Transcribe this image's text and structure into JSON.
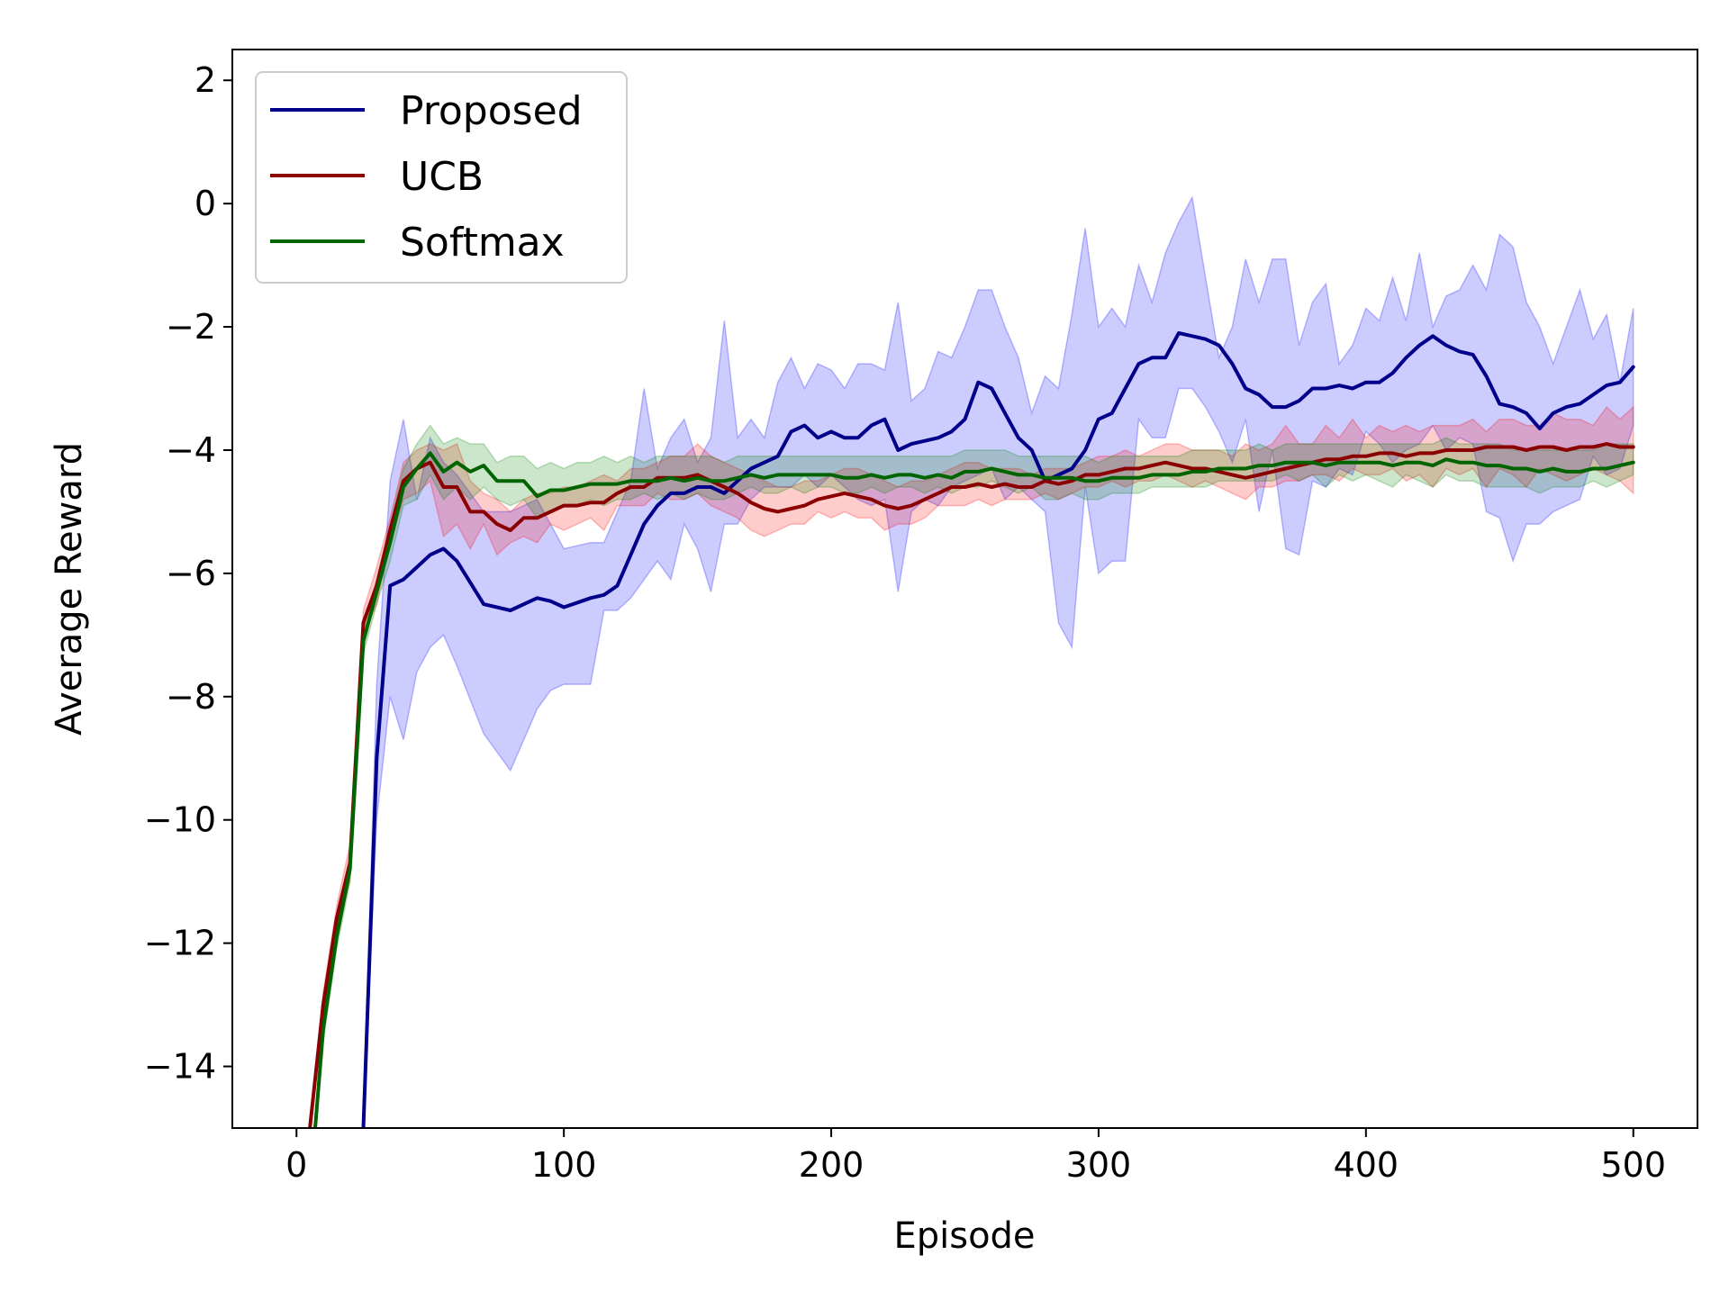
{
  "chart_data": {
    "type": "line",
    "title": "",
    "xlabel": "Episode",
    "ylabel": "Average Reward",
    "xlim": [
      -24,
      524
    ],
    "ylim": [
      -15,
      2.5
    ],
    "xticks": [
      0,
      100,
      200,
      300,
      400,
      500
    ],
    "xtick_labels": [
      "0",
      "100",
      "200",
      "300",
      "400",
      "500"
    ],
    "yticks": [
      2,
      0,
      -2,
      -4,
      -6,
      -8,
      -10,
      -12,
      -14
    ],
    "ytick_labels": [
      "2",
      "0",
      "−2",
      "−4",
      "−6",
      "−8",
      "−10",
      "−12",
      "−14"
    ],
    "grid": false,
    "legend": {
      "placement": "top-left",
      "entries": [
        "Proposed",
        "UCB",
        "Softmax"
      ]
    },
    "series": [
      {
        "name": "Proposed",
        "color": "#00008b",
        "band_color": "#0000ff",
        "x": [
          25,
          30,
          35,
          40,
          45,
          50,
          55,
          60,
          70,
          80,
          90,
          95,
          100,
          110,
          115,
          120,
          125,
          130,
          135,
          140,
          145,
          150,
          155,
          160,
          165,
          170,
          175,
          180,
          185,
          190,
          195,
          200,
          205,
          210,
          215,
          220,
          225,
          230,
          235,
          240,
          245,
          250,
          255,
          260,
          265,
          270,
          275,
          280,
          285,
          290,
          295,
          300,
          305,
          310,
          315,
          320,
          325,
          330,
          335,
          340,
          345,
          350,
          355,
          360,
          365,
          370,
          375,
          380,
          385,
          390,
          395,
          400,
          405,
          410,
          415,
          420,
          425,
          430,
          435,
          440,
          445,
          450,
          455,
          460,
          465,
          470,
          475,
          480,
          485,
          490,
          495,
          500
        ],
        "y": [
          -15,
          -9,
          -6.2,
          -6.1,
          -5.9,
          -5.7,
          -5.6,
          -5.8,
          -6.5,
          -6.6,
          -6.4,
          -6.45,
          -6.55,
          -6.4,
          -6.35,
          -6.2,
          -5.7,
          -5.2,
          -4.9,
          -4.7,
          -4.7,
          -4.6,
          -4.6,
          -4.7,
          -4.5,
          -4.3,
          -4.2,
          -4.1,
          -3.7,
          -3.6,
          -3.8,
          -3.7,
          -3.8,
          -3.8,
          -3.6,
          -3.5,
          -4.0,
          -3.9,
          -3.85,
          -3.8,
          -3.7,
          -3.5,
          -2.9,
          -3.0,
          -3.4,
          -3.8,
          -4.0,
          -4.5,
          -4.4,
          -4.3,
          -4.0,
          -3.5,
          -3.4,
          -3.0,
          -2.6,
          -2.5,
          -2.5,
          -2.1,
          -2.15,
          -2.2,
          -2.3,
          -2.6,
          -3.0,
          -3.1,
          -3.3,
          -3.3,
          -3.2,
          -3.0,
          -3.0,
          -2.95,
          -3.0,
          -2.9,
          -2.9,
          -2.75,
          -2.5,
          -2.3,
          -2.15,
          -2.3,
          -2.4,
          -2.45,
          -2.8,
          -3.25,
          -3.3,
          -3.4,
          -3.65,
          -3.4,
          -3.3,
          -3.25,
          -3.1,
          -2.95,
          -2.9,
          -2.65
        ],
        "lower": [
          -15,
          -10,
          -8.0,
          -8.7,
          -7.6,
          -7.2,
          -7.0,
          -7.5,
          -8.6,
          -9.2,
          -8.2,
          -7.9,
          -7.8,
          -7.8,
          -6.6,
          -6.6,
          -6.4,
          -6.1,
          -5.8,
          -6.1,
          -5.2,
          -5.6,
          -6.3,
          -5.2,
          -5.2,
          -4.8,
          -4.6,
          -4.6,
          -4.6,
          -4.4,
          -4.6,
          -4.4,
          -4.6,
          -4.8,
          -4.9,
          -4.8,
          -6.3,
          -5.0,
          -4.8,
          -4.9,
          -4.6,
          -4.5,
          -4.4,
          -4.3,
          -4.8,
          -4.6,
          -4.8,
          -5.0,
          -6.8,
          -7.2,
          -4.6,
          -6.0,
          -5.8,
          -5.8,
          -3.5,
          -3.8,
          -3.8,
          -3.0,
          -3.0,
          -3.3,
          -3.7,
          -4.2,
          -3.5,
          -5.0,
          -4.0,
          -5.6,
          -5.7,
          -4.5,
          -4.6,
          -4.3,
          -4.4,
          -3.7,
          -3.9,
          -4.2,
          -4.0,
          -3.9,
          -3.6,
          -4.0,
          -3.8,
          -3.9,
          -5.0,
          -5.1,
          -5.8,
          -5.2,
          -5.2,
          -5.0,
          -4.9,
          -4.8,
          -4.1,
          -4.4,
          -4.3,
          -3.6
        ],
        "upper": [
          -15,
          -7.8,
          -4.5,
          -3.5,
          -4.8,
          -3.8,
          -4.2,
          -4.4,
          -5.0,
          -5.0,
          -4.8,
          -5.2,
          -5.6,
          -5.5,
          -5.5,
          -5.0,
          -4.5,
          -3.0,
          -4.3,
          -3.8,
          -3.5,
          -4.2,
          -3.8,
          -1.9,
          -3.8,
          -3.5,
          -3.8,
          -2.9,
          -2.5,
          -3.0,
          -2.6,
          -2.7,
          -3.0,
          -2.6,
          -2.6,
          -2.7,
          -1.6,
          -3.2,
          -3.0,
          -2.4,
          -2.5,
          -2.0,
          -1.4,
          -1.4,
          -2.0,
          -2.5,
          -3.4,
          -2.8,
          -3.0,
          -1.8,
          -0.4,
          -2.0,
          -1.7,
          -2.0,
          -1.0,
          -1.6,
          -0.8,
          -0.3,
          0.1,
          -1.2,
          -2.5,
          -2.0,
          -0.9,
          -1.6,
          -0.9,
          -0.9,
          -2.3,
          -1.6,
          -1.3,
          -2.6,
          -2.3,
          -1.7,
          -1.9,
          -1.2,
          -1.9,
          -0.8,
          -2.0,
          -1.5,
          -1.4,
          -1.0,
          -1.4,
          -0.5,
          -0.7,
          -1.6,
          -2.0,
          -2.6,
          -2.0,
          -1.4,
          -2.2,
          -1.8,
          -2.9,
          -1.7
        ]
      },
      {
        "name": "UCB",
        "color": "#8b0000",
        "band_color": "#ff0000",
        "x": [
          5,
          10,
          15,
          20,
          25,
          30,
          35,
          40,
          45,
          50,
          55,
          60,
          65,
          70,
          75,
          80,
          85,
          90,
          95,
          100,
          105,
          110,
          115,
          120,
          125,
          130,
          135,
          140,
          145,
          150,
          155,
          160,
          165,
          170,
          175,
          180,
          185,
          190,
          195,
          200,
          205,
          210,
          215,
          220,
          225,
          230,
          235,
          240,
          245,
          250,
          255,
          260,
          265,
          270,
          275,
          280,
          285,
          290,
          295,
          300,
          305,
          310,
          315,
          320,
          325,
          330,
          335,
          340,
          345,
          350,
          355,
          360,
          365,
          370,
          375,
          380,
          385,
          390,
          395,
          400,
          405,
          410,
          415,
          420,
          425,
          430,
          435,
          440,
          445,
          450,
          455,
          460,
          465,
          470,
          475,
          480,
          485,
          490,
          495,
          500
        ],
        "y": [
          -15,
          -13.0,
          -11.6,
          -10.7,
          -6.8,
          -6.2,
          -5.3,
          -4.5,
          -4.3,
          -4.2,
          -4.6,
          -4.6,
          -5.0,
          -5.0,
          -5.2,
          -5.3,
          -5.1,
          -5.1,
          -5.0,
          -4.9,
          -4.9,
          -4.85,
          -4.85,
          -4.7,
          -4.6,
          -4.6,
          -4.45,
          -4.45,
          -4.45,
          -4.4,
          -4.5,
          -4.6,
          -4.7,
          -4.85,
          -4.95,
          -5.0,
          -4.95,
          -4.9,
          -4.8,
          -4.75,
          -4.7,
          -4.75,
          -4.8,
          -4.9,
          -4.95,
          -4.9,
          -4.8,
          -4.7,
          -4.6,
          -4.6,
          -4.55,
          -4.6,
          -4.55,
          -4.6,
          -4.6,
          -4.5,
          -4.55,
          -4.5,
          -4.4,
          -4.4,
          -4.35,
          -4.3,
          -4.3,
          -4.25,
          -4.2,
          -4.25,
          -4.3,
          -4.3,
          -4.35,
          -4.4,
          -4.45,
          -4.4,
          -4.35,
          -4.3,
          -4.25,
          -4.2,
          -4.15,
          -4.15,
          -4.1,
          -4.1,
          -4.05,
          -4.05,
          -4.1,
          -4.05,
          -4.05,
          -4.0,
          -4.0,
          -4.0,
          -3.95,
          -3.95,
          -3.95,
          -4.0,
          -3.95,
          -3.95,
          -4.0,
          -3.95,
          -3.95,
          -3.9,
          -3.95,
          -3.95
        ],
        "lower": [
          -15,
          -13.2,
          -11.8,
          -11.0,
          -7.0,
          -6.5,
          -5.5,
          -4.8,
          -4.7,
          -4.5,
          -5.4,
          -5.2,
          -5.6,
          -5.2,
          -5.7,
          -5.5,
          -5.4,
          -5.5,
          -5.2,
          -5.3,
          -5.2,
          -5.1,
          -5.3,
          -4.9,
          -4.9,
          -4.9,
          -4.7,
          -4.8,
          -4.8,
          -4.7,
          -4.9,
          -5.0,
          -5.1,
          -5.3,
          -5.4,
          -5.3,
          -5.2,
          -5.2,
          -5.0,
          -5.1,
          -5.0,
          -5.1,
          -5.1,
          -5.3,
          -5.2,
          -5.2,
          -5.1,
          -4.9,
          -4.9,
          -4.9,
          -4.8,
          -4.9,
          -4.8,
          -4.8,
          -4.8,
          -4.7,
          -4.8,
          -4.7,
          -4.6,
          -4.6,
          -4.5,
          -4.6,
          -4.5,
          -4.5,
          -4.4,
          -4.5,
          -4.6,
          -4.5,
          -4.6,
          -4.7,
          -4.8,
          -4.6,
          -4.6,
          -4.5,
          -4.5,
          -4.4,
          -4.4,
          -4.5,
          -4.3,
          -4.4,
          -4.4,
          -4.3,
          -4.5,
          -4.4,
          -4.6,
          -4.3,
          -4.4,
          -4.3,
          -4.6,
          -4.3,
          -4.4,
          -4.6,
          -4.3,
          -4.4,
          -4.5,
          -4.4,
          -4.3,
          -4.4,
          -4.5,
          -4.7
        ],
        "upper": [
          -15,
          -12.8,
          -11.4,
          -10.4,
          -6.6,
          -5.9,
          -5.1,
          -4.2,
          -4.0,
          -3.9,
          -4.0,
          -3.9,
          -4.5,
          -4.7,
          -4.8,
          -5.0,
          -4.8,
          -4.7,
          -4.7,
          -4.6,
          -4.6,
          -4.5,
          -4.4,
          -4.5,
          -4.3,
          -4.3,
          -4.2,
          -4.1,
          -4.1,
          -3.9,
          -4.1,
          -4.2,
          -4.3,
          -4.4,
          -4.5,
          -4.6,
          -4.6,
          -4.5,
          -4.5,
          -4.4,
          -4.3,
          -4.3,
          -4.4,
          -4.5,
          -4.6,
          -4.5,
          -4.5,
          -4.4,
          -4.3,
          -4.2,
          -4.2,
          -4.3,
          -4.3,
          -4.3,
          -4.4,
          -4.3,
          -4.3,
          -4.3,
          -4.2,
          -4.1,
          -4.1,
          -4.0,
          -4.1,
          -4.0,
          -3.9,
          -3.9,
          -4.0,
          -4.0,
          -4.0,
          -4.1,
          -3.9,
          -4.0,
          -3.9,
          -3.6,
          -3.9,
          -3.9,
          -3.6,
          -3.8,
          -3.5,
          -3.8,
          -3.6,
          -3.7,
          -3.6,
          -3.7,
          -3.6,
          -3.6,
          -3.6,
          -3.5,
          -3.7,
          -3.5,
          -3.5,
          -3.6,
          -3.6,
          -3.4,
          -3.5,
          -3.5,
          -3.6,
          -3.3,
          -3.5,
          -3.3
        ]
      },
      {
        "name": "Softmax",
        "color": "#006400",
        "band_color": "#008000",
        "x": [
          7,
          10,
          15,
          20,
          25,
          30,
          35,
          40,
          45,
          50,
          55,
          60,
          65,
          70,
          75,
          80,
          85,
          90,
          95,
          100,
          105,
          110,
          115,
          120,
          125,
          130,
          135,
          140,
          145,
          150,
          155,
          160,
          165,
          170,
          175,
          180,
          185,
          190,
          195,
          200,
          205,
          210,
          215,
          220,
          225,
          230,
          235,
          240,
          245,
          250,
          255,
          260,
          265,
          270,
          275,
          280,
          285,
          290,
          295,
          300,
          305,
          310,
          315,
          320,
          325,
          330,
          335,
          340,
          345,
          350,
          355,
          360,
          365,
          370,
          375,
          380,
          385,
          390,
          395,
          400,
          405,
          410,
          415,
          420,
          425,
          430,
          435,
          440,
          445,
          450,
          455,
          460,
          465,
          470,
          475,
          480,
          485,
          490,
          495,
          500
        ],
        "y": [
          -15,
          -13.4,
          -11.9,
          -10.8,
          -7.1,
          -6.3,
          -5.5,
          -4.6,
          -4.3,
          -4.05,
          -4.35,
          -4.2,
          -4.35,
          -4.25,
          -4.5,
          -4.5,
          -4.5,
          -4.75,
          -4.65,
          -4.65,
          -4.6,
          -4.55,
          -4.55,
          -4.55,
          -4.5,
          -4.5,
          -4.5,
          -4.45,
          -4.5,
          -4.45,
          -4.5,
          -4.5,
          -4.45,
          -4.4,
          -4.45,
          -4.4,
          -4.4,
          -4.4,
          -4.4,
          -4.4,
          -4.45,
          -4.45,
          -4.4,
          -4.45,
          -4.4,
          -4.4,
          -4.45,
          -4.4,
          -4.45,
          -4.35,
          -4.35,
          -4.3,
          -4.35,
          -4.4,
          -4.4,
          -4.45,
          -4.45,
          -4.45,
          -4.5,
          -4.5,
          -4.45,
          -4.45,
          -4.45,
          -4.4,
          -4.4,
          -4.4,
          -4.35,
          -4.35,
          -4.3,
          -4.3,
          -4.3,
          -4.25,
          -4.25,
          -4.2,
          -4.2,
          -4.2,
          -4.25,
          -4.2,
          -4.2,
          -4.2,
          -4.2,
          -4.25,
          -4.2,
          -4.2,
          -4.25,
          -4.15,
          -4.2,
          -4.2,
          -4.25,
          -4.25,
          -4.3,
          -4.3,
          -4.35,
          -4.3,
          -4.35,
          -4.35,
          -4.3,
          -4.3,
          -4.25,
          -4.2
        ],
        "lower": [
          -15,
          -13.6,
          -12.1,
          -11.0,
          -7.3,
          -6.5,
          -5.8,
          -4.9,
          -4.8,
          -4.4,
          -4.8,
          -4.6,
          -4.8,
          -4.6,
          -4.8,
          -4.9,
          -4.8,
          -5.1,
          -5.0,
          -4.9,
          -4.9,
          -4.8,
          -4.9,
          -4.8,
          -4.8,
          -4.7,
          -4.8,
          -4.7,
          -4.8,
          -4.7,
          -4.8,
          -4.8,
          -4.7,
          -4.6,
          -4.7,
          -4.7,
          -4.6,
          -4.7,
          -4.6,
          -4.6,
          -4.7,
          -4.7,
          -4.6,
          -4.7,
          -4.6,
          -4.6,
          -4.7,
          -4.6,
          -4.7,
          -4.6,
          -4.6,
          -4.5,
          -4.6,
          -4.7,
          -4.6,
          -4.8,
          -4.8,
          -4.7,
          -4.8,
          -4.8,
          -4.7,
          -4.7,
          -4.7,
          -4.6,
          -4.6,
          -4.6,
          -4.6,
          -4.6,
          -4.5,
          -4.5,
          -4.5,
          -4.5,
          -4.5,
          -4.4,
          -4.5,
          -4.4,
          -4.6,
          -4.4,
          -4.5,
          -4.4,
          -4.5,
          -4.6,
          -4.4,
          -4.5,
          -4.6,
          -4.4,
          -4.5,
          -4.5,
          -4.6,
          -4.6,
          -4.6,
          -4.6,
          -4.7,
          -4.6,
          -4.6,
          -4.6,
          -4.5,
          -4.6,
          -4.5,
          -4.4
        ],
        "upper": [
          -15,
          -13.2,
          -11.7,
          -10.6,
          -6.9,
          -6.1,
          -5.2,
          -4.3,
          -3.9,
          -3.6,
          -3.9,
          -3.8,
          -3.9,
          -3.9,
          -4.2,
          -4.1,
          -4.1,
          -4.3,
          -4.2,
          -4.3,
          -4.2,
          -4.2,
          -4.1,
          -4.2,
          -4.1,
          -4.2,
          -4.1,
          -4.1,
          -4.1,
          -4.1,
          -4.1,
          -4.2,
          -4.1,
          -4.1,
          -4.1,
          -4.1,
          -4.1,
          -4.1,
          -4.1,
          -4.1,
          -4.1,
          -4.1,
          -4.1,
          -4.1,
          -4.1,
          -4.1,
          -4.1,
          -4.1,
          -4.1,
          -4.0,
          -4.0,
          -4.0,
          -4.0,
          -4.1,
          -4.1,
          -4.1,
          -4.1,
          -4.1,
          -4.1,
          -4.2,
          -4.1,
          -4.1,
          -4.1,
          -4.1,
          -4.1,
          -4.1,
          -4.0,
          -4.0,
          -4.0,
          -4.0,
          -4.0,
          -3.9,
          -4.0,
          -3.9,
          -3.9,
          -3.9,
          -3.9,
          -3.9,
          -3.9,
          -3.9,
          -3.9,
          -3.9,
          -3.9,
          -3.9,
          -3.9,
          -3.8,
          -3.9,
          -3.9,
          -3.9,
          -3.9,
          -4.0,
          -4.0,
          -4.0,
          -4.0,
          -4.0,
          -4.0,
          -4.0,
          -3.9,
          -3.9,
          -3.9
        ]
      }
    ]
  }
}
